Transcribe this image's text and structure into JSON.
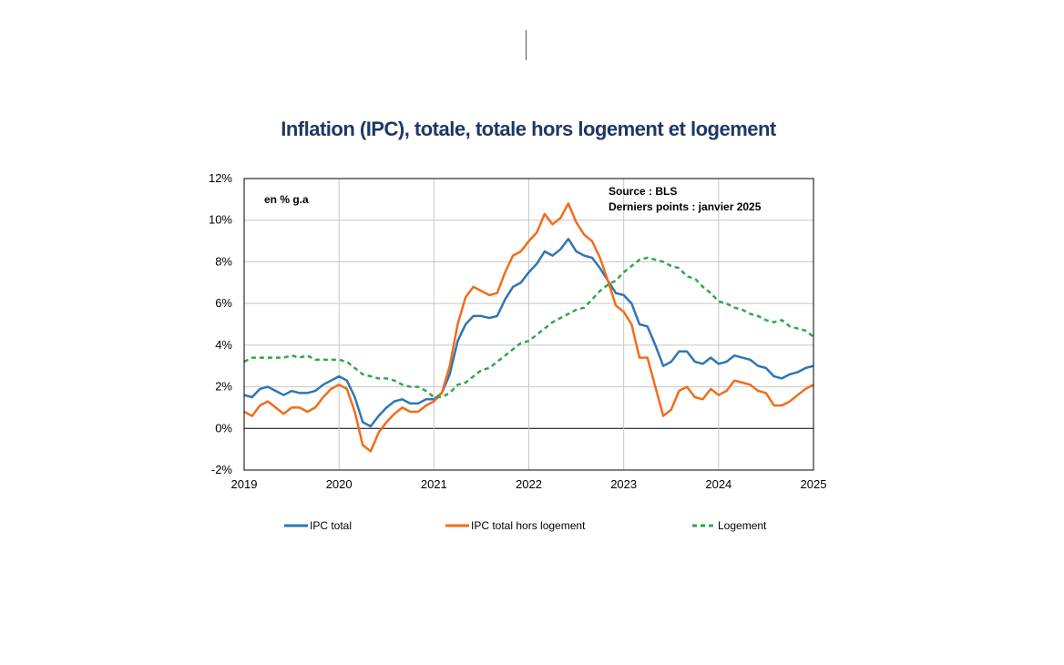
{
  "chart_data": {
    "type": "line",
    "title": "Inflation (IPC), totale, totale hors logement et logement",
    "unit_label": "en % g.a",
    "source_note": [
      "Source : BLS",
      "Derniers points : janvier 2025"
    ],
    "xlabel": "",
    "ylabel": "",
    "x_tick_labels": [
      "2019",
      "2020",
      "2021",
      "2022",
      "2023",
      "2024",
      "2025"
    ],
    "x_range": [
      2019,
      2025
    ],
    "y_tick_labels": [
      "-2%",
      "0%",
      "2%",
      "4%",
      "6%",
      "8%",
      "10%",
      "12%"
    ],
    "ylim": [
      -2,
      12
    ],
    "grid": true,
    "legend_position": "bottom",
    "series": [
      {
        "name": "IPC total",
        "color": "#2e75b6",
        "style": "solid",
        "start": 2019,
        "step_months": 1,
        "values": [
          1.6,
          1.5,
          1.9,
          2.0,
          1.8,
          1.6,
          1.8,
          1.7,
          1.7,
          1.8,
          2.1,
          2.3,
          2.5,
          2.3,
          1.5,
          0.3,
          0.1,
          0.6,
          1.0,
          1.3,
          1.4,
          1.2,
          1.2,
          1.4,
          1.4,
          1.7,
          2.6,
          4.2,
          5.0,
          5.4,
          5.4,
          5.3,
          5.4,
          6.2,
          6.8,
          7.0,
          7.5,
          7.9,
          8.5,
          8.3,
          8.6,
          9.1,
          8.5,
          8.3,
          8.2,
          7.7,
          7.1,
          6.5,
          6.4,
          6.0,
          5.0,
          4.9,
          4.0,
          3.0,
          3.2,
          3.7,
          3.7,
          3.2,
          3.1,
          3.4,
          3.1,
          3.2,
          3.5,
          3.4,
          3.3,
          3.0,
          2.9,
          2.5,
          2.4,
          2.6,
          2.7,
          2.9,
          3.0
        ]
      },
      {
        "name": "IPC total hors logement",
        "color": "#f26c1b",
        "style": "solid",
        "start": 2019,
        "step_months": 1,
        "values": [
          0.8,
          0.6,
          1.1,
          1.3,
          1.0,
          0.7,
          1.0,
          1.0,
          0.8,
          1.0,
          1.5,
          1.9,
          2.1,
          1.9,
          0.8,
          -0.8,
          -1.1,
          -0.2,
          0.3,
          0.7,
          1.0,
          0.8,
          0.8,
          1.1,
          1.3,
          1.7,
          3.0,
          5.0,
          6.3,
          6.8,
          6.6,
          6.4,
          6.5,
          7.5,
          8.3,
          8.5,
          9.0,
          9.4,
          10.3,
          9.8,
          10.1,
          10.8,
          9.9,
          9.3,
          9.0,
          8.2,
          7.1,
          5.9,
          5.6,
          5.0,
          3.4,
          3.4,
          2.0,
          0.6,
          0.9,
          1.8,
          2.0,
          1.5,
          1.4,
          1.9,
          1.6,
          1.8,
          2.3,
          2.2,
          2.1,
          1.8,
          1.7,
          1.1,
          1.1,
          1.3,
          1.6,
          1.9,
          2.1
        ]
      },
      {
        "name": "Logement",
        "color": "#2ea84a",
        "style": "dashed",
        "start": 2019,
        "step_months": 1,
        "values": [
          3.2,
          3.4,
          3.4,
          3.4,
          3.4,
          3.4,
          3.5,
          3.4,
          3.5,
          3.3,
          3.3,
          3.3,
          3.3,
          3.2,
          2.9,
          2.6,
          2.5,
          2.4,
          2.4,
          2.3,
          2.1,
          2.0,
          2.0,
          1.8,
          1.5,
          1.5,
          1.7,
          2.1,
          2.2,
          2.5,
          2.8,
          2.9,
          3.2,
          3.5,
          3.8,
          4.1,
          4.2,
          4.5,
          4.8,
          5.1,
          5.3,
          5.5,
          5.7,
          5.8,
          6.2,
          6.6,
          6.9,
          7.1,
          7.5,
          7.8,
          8.1,
          8.2,
          8.1,
          8.0,
          7.8,
          7.7,
          7.3,
          7.2,
          6.8,
          6.5,
          6.1,
          6.0,
          5.8,
          5.7,
          5.5,
          5.4,
          5.2,
          5.1,
          5.2,
          4.9,
          4.8,
          4.7,
          4.4
        ]
      }
    ]
  }
}
